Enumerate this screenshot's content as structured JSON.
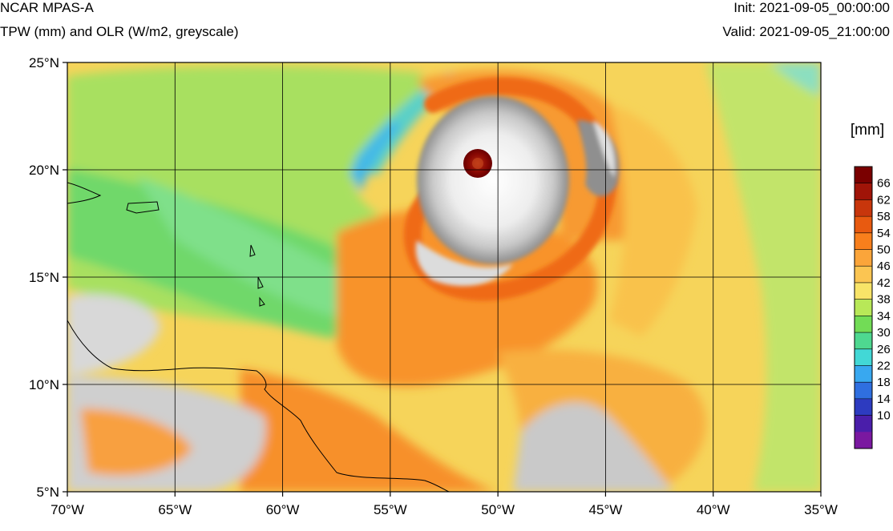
{
  "header": {
    "title": "NCAR MPAS-A",
    "subtitle": "TPW (mm) and OLR (W/m2, greyscale)",
    "init": "Init: 2021-09-05_00:00:00",
    "valid": "Valid: 2021-09-05_21:00:00"
  },
  "map": {
    "projection": "lat-lon",
    "extent": {
      "lon": [
        -70,
        -35
      ],
      "lat": [
        5,
        25
      ]
    },
    "lat_ticks": [
      {
        "value": 25,
        "label": "25°N"
      },
      {
        "value": 20,
        "label": "20°N"
      },
      {
        "value": 15,
        "label": "15°N"
      },
      {
        "value": 10,
        "label": "10°N"
      },
      {
        "value": 5,
        "label": "5°N"
      }
    ],
    "lon_ticks": [
      {
        "value": -70,
        "label": "70°W"
      },
      {
        "value": -65,
        "label": "65°W"
      },
      {
        "value": -60,
        "label": "60°W"
      },
      {
        "value": -55,
        "label": "55°W"
      },
      {
        "value": -50,
        "label": "50°W"
      },
      {
        "value": -45,
        "label": "45°W"
      },
      {
        "value": -40,
        "label": "40°W"
      },
      {
        "value": -35,
        "label": "35°W"
      }
    ],
    "grid": true
  },
  "colorbar": {
    "unit": "[mm]",
    "levels": [
      66,
      62,
      58,
      54,
      50,
      46,
      42,
      38,
      34,
      30,
      26,
      22,
      18,
      14,
      10
    ],
    "colors": [
      "#7a0000",
      "#a01408",
      "#c8360c",
      "#e85a10",
      "#f87f1c",
      "#fba53a",
      "#fbc552",
      "#f8e468",
      "#b8e858",
      "#72dc56",
      "#4ed890",
      "#42d8d6",
      "#38a8f0",
      "#2f6fe0",
      "#2d3bc0",
      "#4a1eaa",
      "#7a18a0"
    ]
  }
}
